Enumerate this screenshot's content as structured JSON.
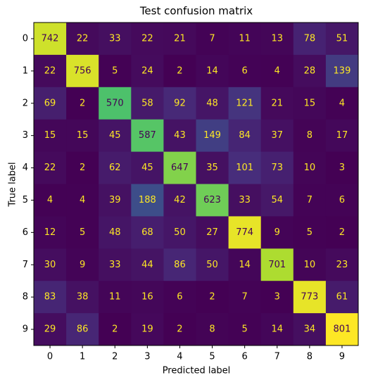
{
  "chart_data": {
    "type": "heatmap",
    "title": "Test confusion matrix",
    "xlabel": "Predicted label",
    "ylabel": "True label",
    "colormap": "viridis",
    "categories": [
      "0",
      "1",
      "2",
      "3",
      "4",
      "5",
      "6",
      "7",
      "8",
      "9"
    ],
    "y_categories": [
      "0",
      "1",
      "2",
      "3",
      "4",
      "5",
      "6",
      "7",
      "8",
      "9"
    ],
    "values": [
      [
        742,
        22,
        33,
        22,
        21,
        7,
        11,
        13,
        78,
        51
      ],
      [
        22,
        756,
        5,
        24,
        2,
        14,
        6,
        4,
        28,
        139
      ],
      [
        69,
        2,
        570,
        58,
        92,
        48,
        121,
        21,
        15,
        4
      ],
      [
        15,
        15,
        45,
        587,
        43,
        149,
        84,
        37,
        8,
        17
      ],
      [
        22,
        2,
        62,
        45,
        647,
        35,
        101,
        73,
        10,
        3
      ],
      [
        4,
        4,
        39,
        188,
        42,
        623,
        33,
        54,
        7,
        6
      ],
      [
        12,
        5,
        48,
        68,
        50,
        27,
        774,
        9,
        5,
        2
      ],
      [
        30,
        9,
        33,
        44,
        86,
        50,
        14,
        701,
        10,
        23
      ],
      [
        83,
        38,
        11,
        16,
        6,
        2,
        7,
        3,
        773,
        61
      ],
      [
        29,
        86,
        2,
        19,
        2,
        8,
        5,
        14,
        34,
        801
      ]
    ]
  }
}
